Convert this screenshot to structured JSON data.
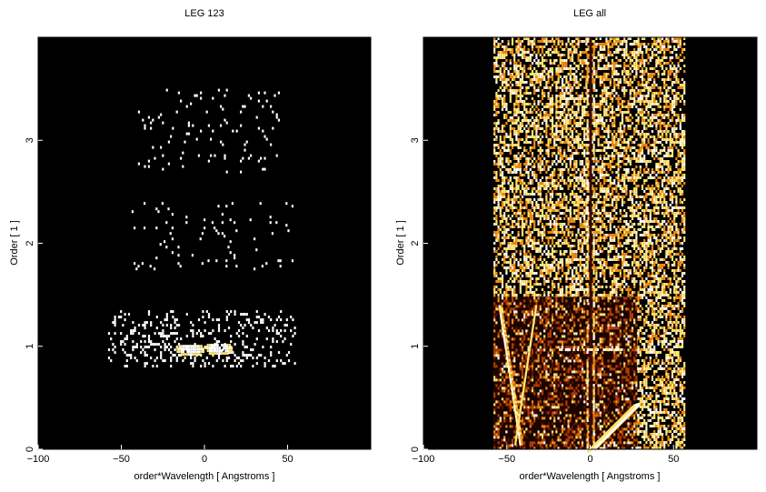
{
  "chart_data": [
    {
      "type": "heatmap",
      "title": "LEG 123",
      "xlabel": "order*Wavelength [ Angstroms ]",
      "ylabel": "Order [ 1 ]",
      "xlim": [
        -100,
        100
      ],
      "ylim": [
        0,
        4
      ],
      "x_ticks": [
        -100,
        -50,
        0,
        50
      ],
      "y_ticks": [
        0,
        1,
        2,
        3
      ],
      "background": "#000000",
      "colormap": [
        "#000000",
        "#5a1200",
        "#b43c00",
        "#f08c14",
        "#ffe678",
        "#ffffff"
      ],
      "features": [
        {
          "kind": "sparse-band",
          "x_range": [
            -58,
            55
          ],
          "y_range": [
            0.82,
            1.35
          ],
          "density": 0.3
        },
        {
          "kind": "bright-blob",
          "x_center": -9,
          "y_center": 0.98,
          "x_width": 9,
          "y_width": 0.06
        },
        {
          "kind": "bright-blob",
          "x_center": 8,
          "y_center": 0.99,
          "x_width": 9,
          "y_width": 0.06
        },
        {
          "kind": "sparse-band",
          "x_range": [
            -45,
            55
          ],
          "y_range": [
            1.75,
            2.4
          ],
          "density": 0.07
        },
        {
          "kind": "sparse-band",
          "x_range": [
            -40,
            45
          ],
          "y_range": [
            2.7,
            3.5
          ],
          "density": 0.07
        }
      ]
    },
    {
      "type": "heatmap",
      "title": "LEG all",
      "xlabel": "order*Wavelength [ Angstroms ]",
      "ylabel": "Order [ 1 ]",
      "xlim": [
        -100,
        100
      ],
      "ylim": [
        0,
        4
      ],
      "x_ticks": [
        -100,
        -50,
        0,
        50
      ],
      "y_ticks": [
        0,
        1,
        2,
        3
      ],
      "background": "#000000",
      "colormap": [
        "#000000",
        "#5a1200",
        "#b43c00",
        "#f08c14",
        "#ffe678",
        "#ffffff"
      ],
      "features": [
        {
          "kind": "dense-noise",
          "x_range": [
            -58,
            57
          ],
          "y_range": [
            0,
            4
          ],
          "density": 0.55
        },
        {
          "kind": "dark-block",
          "x_range": [
            -58,
            28
          ],
          "y_range": [
            0,
            1.48
          ]
        },
        {
          "kind": "zero-order-line",
          "x": 0,
          "width": 3
        },
        {
          "kind": "diagonal-arc",
          "from": [
            0,
            0
          ],
          "to": [
            28,
            0.45
          ]
        },
        {
          "kind": "v-structure",
          "x_range": [
            -58,
            -30
          ],
          "y_range": [
            0.05,
            1.4
          ]
        },
        {
          "kind": "horizontal-streak",
          "x_range": [
            -20,
            20
          ],
          "y": 0.98
        }
      ]
    }
  ]
}
